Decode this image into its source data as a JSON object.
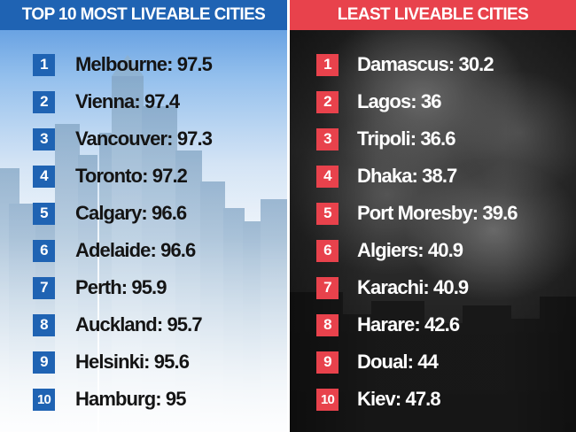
{
  "left": {
    "title": "TOP 10 MOST LIVEABLE CITIES",
    "accent": "#1f63b3",
    "items": [
      {
        "rank": "1",
        "city": "Melbourne",
        "score": "97.5"
      },
      {
        "rank": "2",
        "city": "Vienna",
        "score": "97.4"
      },
      {
        "rank": "3",
        "city": "Vancouver",
        "score": "97.3"
      },
      {
        "rank": "4",
        "city": "Toronto",
        "score": "97.2"
      },
      {
        "rank": "5",
        "city": "Calgary",
        "score": "96.6"
      },
      {
        "rank": "6",
        "city": "Adelaide",
        "score": "96.6"
      },
      {
        "rank": "7",
        "city": "Perth",
        "score": "95.9"
      },
      {
        "rank": "8",
        "city": "Auckland",
        "score": "95.7"
      },
      {
        "rank": "9",
        "city": "Helsinki",
        "score": "95.6"
      },
      {
        "rank": "10",
        "city": "Hamburg",
        "score": "95"
      }
    ]
  },
  "right": {
    "title": "LEAST LIVEABLE CITIES",
    "accent": "#e8424c",
    "items": [
      {
        "rank": "1",
        "city": "Damascus",
        "score": "30.2"
      },
      {
        "rank": "2",
        "city": "Lagos",
        "score": "36"
      },
      {
        "rank": "3",
        "city": "Tripoli",
        "score": "36.6"
      },
      {
        "rank": "4",
        "city": "Dhaka",
        "score": "38.7"
      },
      {
        "rank": "5",
        "city": "Port Moresby",
        "score": "39.6"
      },
      {
        "rank": "6",
        "city": "Algiers",
        "score": "40.9"
      },
      {
        "rank": "7",
        "city": "Karachi",
        "score": "40.9"
      },
      {
        "rank": "8",
        "city": "Harare",
        "score": "42.6"
      },
      {
        "rank": "9",
        "city": "Doual",
        "score": "44"
      },
      {
        "rank": "10",
        "city": "Kiev",
        "score": "47.8"
      }
    ]
  }
}
